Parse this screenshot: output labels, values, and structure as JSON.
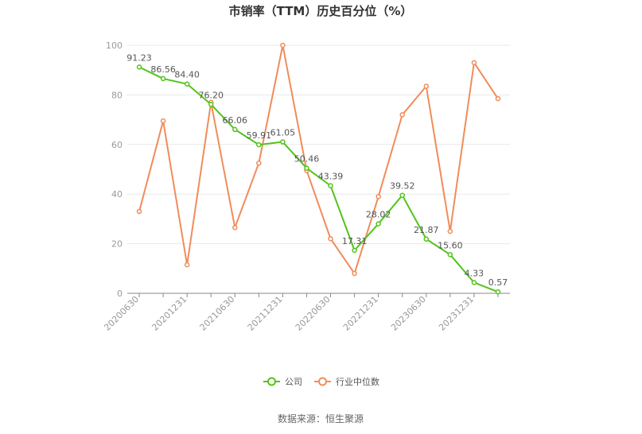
{
  "chart_data": {
    "type": "line",
    "title": "市销率（TTM）历史百分位（%）",
    "xlabel": "",
    "ylabel": "",
    "ylim": [
      0,
      100
    ],
    "yticks": [
      0,
      20,
      40,
      60,
      80,
      100
    ],
    "grid": true,
    "legend_position": "bottom",
    "x": [
      "20200630",
      "20200930",
      "20201231",
      "20210331",
      "20210630",
      "20210930",
      "20211231",
      "20220331",
      "20220630",
      "20220930",
      "20221231",
      "20230331",
      "20230630",
      "20230930",
      "20231231",
      "20240331"
    ],
    "xtick_labels": [
      "20200630",
      "20201231",
      "20210630",
      "20211231",
      "20220630",
      "20221231",
      "20230630",
      "20231231"
    ],
    "series": [
      {
        "name": "公司",
        "color": "#52c41a",
        "values": [
          91.23,
          86.56,
          84.4,
          76.2,
          66.06,
          59.91,
          61.05,
          50.46,
          43.39,
          17.31,
          28.02,
          39.52,
          21.87,
          15.6,
          4.33,
          0.57
        ],
        "labels": [
          "91.23",
          "86.56",
          "84.40",
          "76.20",
          "66.06",
          "59.91",
          "61.05",
          "50.46",
          "43.39",
          "17.31",
          "28.02",
          "39.52",
          "21.87",
          "15.60",
          "4.33",
          "0.57"
        ]
      },
      {
        "name": "行业中位数",
        "color": "#f08c5a",
        "values": [
          33,
          69.5,
          11.5,
          77,
          26.5,
          52.5,
          100,
          49.5,
          22,
          8,
          39,
          72,
          83.5,
          25,
          93,
          78.5
        ]
      }
    ]
  },
  "source": "数据来源：恒生聚源"
}
